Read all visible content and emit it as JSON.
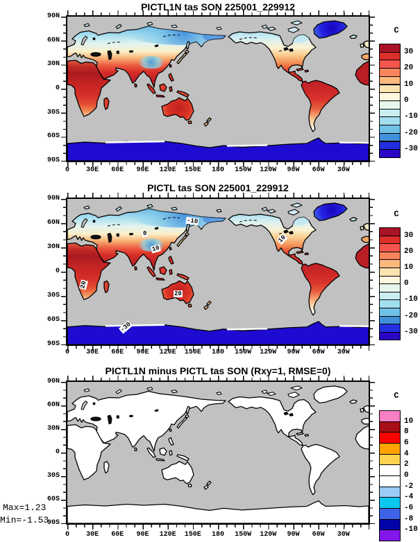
{
  "figure": {
    "background": "#FFFFFF",
    "ocean_color": "#C1C1C1",
    "coastline_color": "#000000"
  },
  "panels": [
    {
      "title": "PICTL1N tas SON 225001_229912",
      "lat_labels": [
        "90N",
        "60N",
        "30N",
        "0",
        "30S",
        "60S",
        "90S"
      ],
      "lon_labels": [
        "0",
        "30E",
        "60E",
        "90E",
        "120E",
        "150E",
        "180",
        "150W",
        "120W",
        "90W",
        "60W",
        "30W"
      ],
      "colorbar": {
        "unit": "C",
        "labels": [
          "30",
          "20",
          "10",
          "0",
          "-10",
          "-20",
          "-30"
        ],
        "colors": [
          "#A81425",
          "#DC2F2A",
          "#F4554C",
          "#F9855C",
          "#FDB87E",
          "#FDE3B0",
          "#FEF6DE",
          "#E7F7EE",
          "#C9EEF0",
          "#A2DEEF",
          "#6FC1E7",
          "#4090D9",
          "#2330E0",
          "#2A06C4"
        ]
      }
    },
    {
      "title": "PICTL tas SON 225001_229912",
      "lat_labels": [
        "90N",
        "60N",
        "30N",
        "0",
        "30S",
        "60S",
        "90S"
      ],
      "lon_labels": [
        "0",
        "30E",
        "60E",
        "90E",
        "120E",
        "150E",
        "180",
        "150W",
        "120W",
        "90W",
        "60W",
        "30W"
      ],
      "contour_labels": [
        "-10",
        "0",
        "10",
        "10",
        "20",
        "20",
        "-30"
      ],
      "colorbar": {
        "unit": "C",
        "labels": [
          "30",
          "20",
          "10",
          "0",
          "-10",
          "-20",
          "-30"
        ],
        "colors": [
          "#A81425",
          "#DC2F2A",
          "#F4554C",
          "#F9855C",
          "#FDB87E",
          "#FDE3B0",
          "#FEF6DE",
          "#E7F7EE",
          "#C9EEF0",
          "#A2DEEF",
          "#6FC1E7",
          "#4090D9",
          "#2330E0",
          "#2A06C4"
        ]
      }
    },
    {
      "title": "PICTL1N minus PICTL tas SON (Rxy=1, RMSE=0)",
      "lat_labels": [
        "90N",
        "60N",
        "30N",
        "0",
        "30S",
        "60S",
        "90S"
      ],
      "lon_labels": [
        "0",
        "30E",
        "60E",
        "90E",
        "120E",
        "150E",
        "180",
        "150W",
        "120W",
        "90W",
        "60W",
        "30W"
      ],
      "colorbar": {
        "unit": "C",
        "labels": [
          "10",
          "8",
          "6",
          "4",
          "2",
          "0",
          "-2",
          "-4",
          "-6",
          "-8",
          "-10"
        ],
        "colors": [
          "#F77FC4",
          "#A50F15",
          "#FB0200",
          "#FFA200",
          "#FFD34F",
          "#FFFFFF",
          "#FFFFFF",
          "#9CCBF5",
          "#0CC7F2",
          "#3E62E8",
          "#0203A8",
          "#8316EA"
        ]
      },
      "stats": {
        "max": "Max=1.23",
        "min": "Min=-1.53"
      }
    }
  ]
}
